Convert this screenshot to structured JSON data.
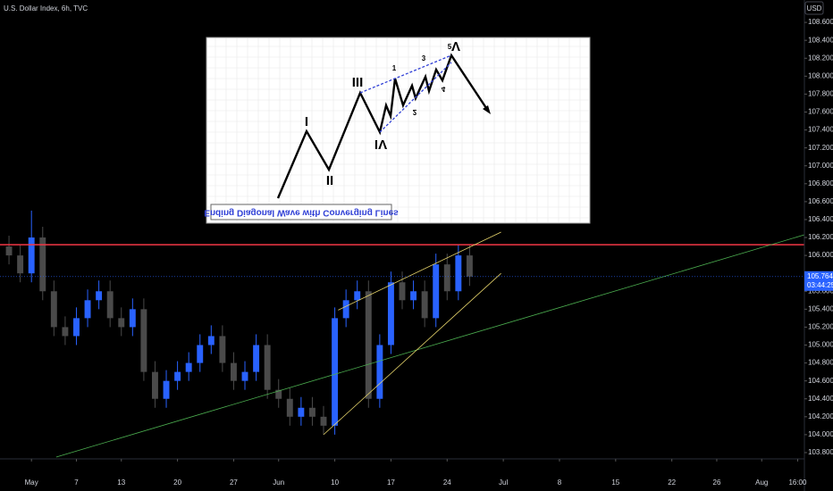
{
  "chart_data": {
    "type": "candlestick",
    "title": "U.S. Dollar Index, 6h, TVC",
    "currency": "USD",
    "x": [
      -2,
      -1,
      0,
      1,
      2,
      3,
      4,
      5,
      6,
      7,
      8,
      9,
      10,
      11,
      12,
      13,
      14,
      15,
      16,
      17,
      18,
      19,
      20,
      21,
      22,
      23,
      24,
      25,
      26,
      27,
      28,
      29,
      30,
      31,
      32,
      33,
      34,
      35,
      36,
      37,
      38,
      39
    ],
    "open": [
      106.1,
      106.0,
      105.8,
      106.2,
      105.6,
      105.2,
      105.1,
      105.3,
      105.5,
      105.6,
      105.3,
      105.2,
      105.4,
      104.7,
      104.4,
      104.6,
      104.7,
      104.8,
      105.0,
      105.1,
      104.8,
      104.6,
      104.7,
      105.0,
      104.5,
      104.4,
      104.2,
      104.3,
      104.2,
      104.1,
      105.3,
      105.5,
      105.6,
      104.4,
      105.0,
      105.7,
      105.5,
      105.6,
      105.3,
      105.9,
      105.6,
      106.0
    ],
    "high": [
      106.22,
      106.12,
      106.5,
      106.32,
      105.72,
      105.32,
      105.42,
      105.62,
      105.72,
      105.72,
      105.42,
      105.52,
      105.52,
      104.82,
      104.72,
      104.82,
      104.92,
      105.12,
      105.22,
      105.22,
      104.92,
      104.82,
      105.12,
      105.12,
      104.62,
      104.52,
      104.42,
      104.42,
      104.32,
      105.42,
      105.62,
      105.72,
      105.72,
      105.12,
      105.82,
      105.82,
      105.72,
      105.72,
      106.02,
      106.02,
      106.12,
      106.12
    ],
    "low": [
      105.9,
      105.7,
      105.7,
      105.5,
      105.1,
      105.0,
      105.0,
      105.2,
      105.4,
      105.2,
      105.1,
      105.1,
      104.6,
      104.3,
      104.3,
      104.5,
      104.6,
      104.7,
      104.9,
      104.7,
      104.5,
      104.5,
      104.6,
      104.4,
      104.3,
      104.1,
      104.1,
      104.1,
      104.0,
      104.0,
      105.2,
      105.4,
      104.3,
      104.3,
      104.9,
      105.4,
      105.4,
      105.2,
      105.2,
      105.5,
      105.5,
      105.66
    ],
    "close": [
      106.0,
      105.8,
      106.2,
      105.6,
      105.2,
      105.1,
      105.3,
      105.5,
      105.6,
      105.3,
      105.2,
      105.4,
      104.7,
      104.4,
      104.6,
      104.7,
      104.8,
      105.0,
      105.1,
      104.8,
      104.6,
      104.7,
      105.0,
      104.5,
      104.4,
      104.2,
      104.3,
      104.2,
      104.1,
      105.3,
      105.5,
      105.6,
      104.4,
      105.0,
      105.7,
      105.5,
      105.6,
      105.3,
      105.9,
      105.6,
      106.0,
      105.764
    ],
    "up_color": "#2962ff",
    "down_color": "#4a4a4a",
    "xlim": [
      -2.8,
      68.8
    ],
    "ylim": [
      103.72,
      108.85
    ],
    "xticks": [
      {
        "value": 0,
        "label": "May"
      },
      {
        "value": 4,
        "label": "7"
      },
      {
        "value": 8,
        "label": "13"
      },
      {
        "value": 13,
        "label": "20"
      },
      {
        "value": 18,
        "label": "27"
      },
      {
        "value": 22,
        "label": "Jun"
      },
      {
        "value": 27,
        "label": "10"
      },
      {
        "value": 32,
        "label": "17"
      },
      {
        "value": 37,
        "label": "24"
      },
      {
        "value": 42,
        "label": "Jul"
      },
      {
        "value": 47,
        "label": "8"
      },
      {
        "value": 52,
        "label": "15"
      },
      {
        "value": 57,
        "label": "22"
      },
      {
        "value": 61,
        "label": "26"
      },
      {
        "value": 65,
        "label": "Aug"
      },
      {
        "value": 68.2,
        "label": "16:00"
      }
    ],
    "yticks": [
      {
        "value": 108.6,
        "label": "108.600"
      },
      {
        "value": 108.4,
        "label": "108.400"
      },
      {
        "value": 108.2,
        "label": "108.200"
      },
      {
        "value": 108.0,
        "label": "108.000"
      },
      {
        "value": 107.8,
        "label": "107.800"
      },
      {
        "value": 107.6,
        "label": "107.600"
      },
      {
        "value": 107.4,
        "label": "107.400"
      },
      {
        "value": 107.2,
        "label": "107.200"
      },
      {
        "value": 107.0,
        "label": "107.000"
      },
      {
        "value": 106.8,
        "label": "106.800"
      },
      {
        "value": 106.6,
        "label": "106.600"
      },
      {
        "value": 106.4,
        "label": "106.400"
      },
      {
        "value": 106.2,
        "label": "106.200"
      },
      {
        "value": 106.0,
        "label": "106.000"
      },
      {
        "value": 105.6,
        "label": "105.600"
      },
      {
        "value": 105.4,
        "label": "105.400"
      },
      {
        "value": 105.2,
        "label": "105.200"
      },
      {
        "value": 105.0,
        "label": "105.000"
      },
      {
        "value": 104.8,
        "label": "104.800"
      },
      {
        "value": 104.6,
        "label": "104.600"
      },
      {
        "value": 104.4,
        "label": "104.400"
      },
      {
        "value": 104.2,
        "label": "104.200"
      },
      {
        "value": 104.0,
        "label": "104.000"
      },
      {
        "value": 103.8,
        "label": "103.800"
      }
    ],
    "last_price": {
      "value": 105.764,
      "label": "105.764",
      "countdown": "03:44:25",
      "color": "#2962ff"
    },
    "horizontal_line": {
      "value": 106.12,
      "color": "#f23645"
    },
    "trend_lines": [
      {
        "color": "#4caf50",
        "x": [
          2.2,
          68.8
        ],
        "y": [
          103.75,
          106.23
        ]
      },
      {
        "color": "#e6d46b",
        "x": [
          27.3,
          41.8
        ],
        "y": [
          105.39,
          106.26
        ]
      },
      {
        "color": "#e6d46b",
        "x": [
          26,
          41.8
        ],
        "y": [
          104.0,
          105.8
        ]
      }
    ],
    "inset": {
      "caption": "Ending Diagonal Wave with Converging Lines",
      "wave_labels": [
        "I",
        "II",
        "III",
        "IV",
        "V",
        "1",
        "2",
        "3",
        "4",
        "5"
      ]
    }
  }
}
